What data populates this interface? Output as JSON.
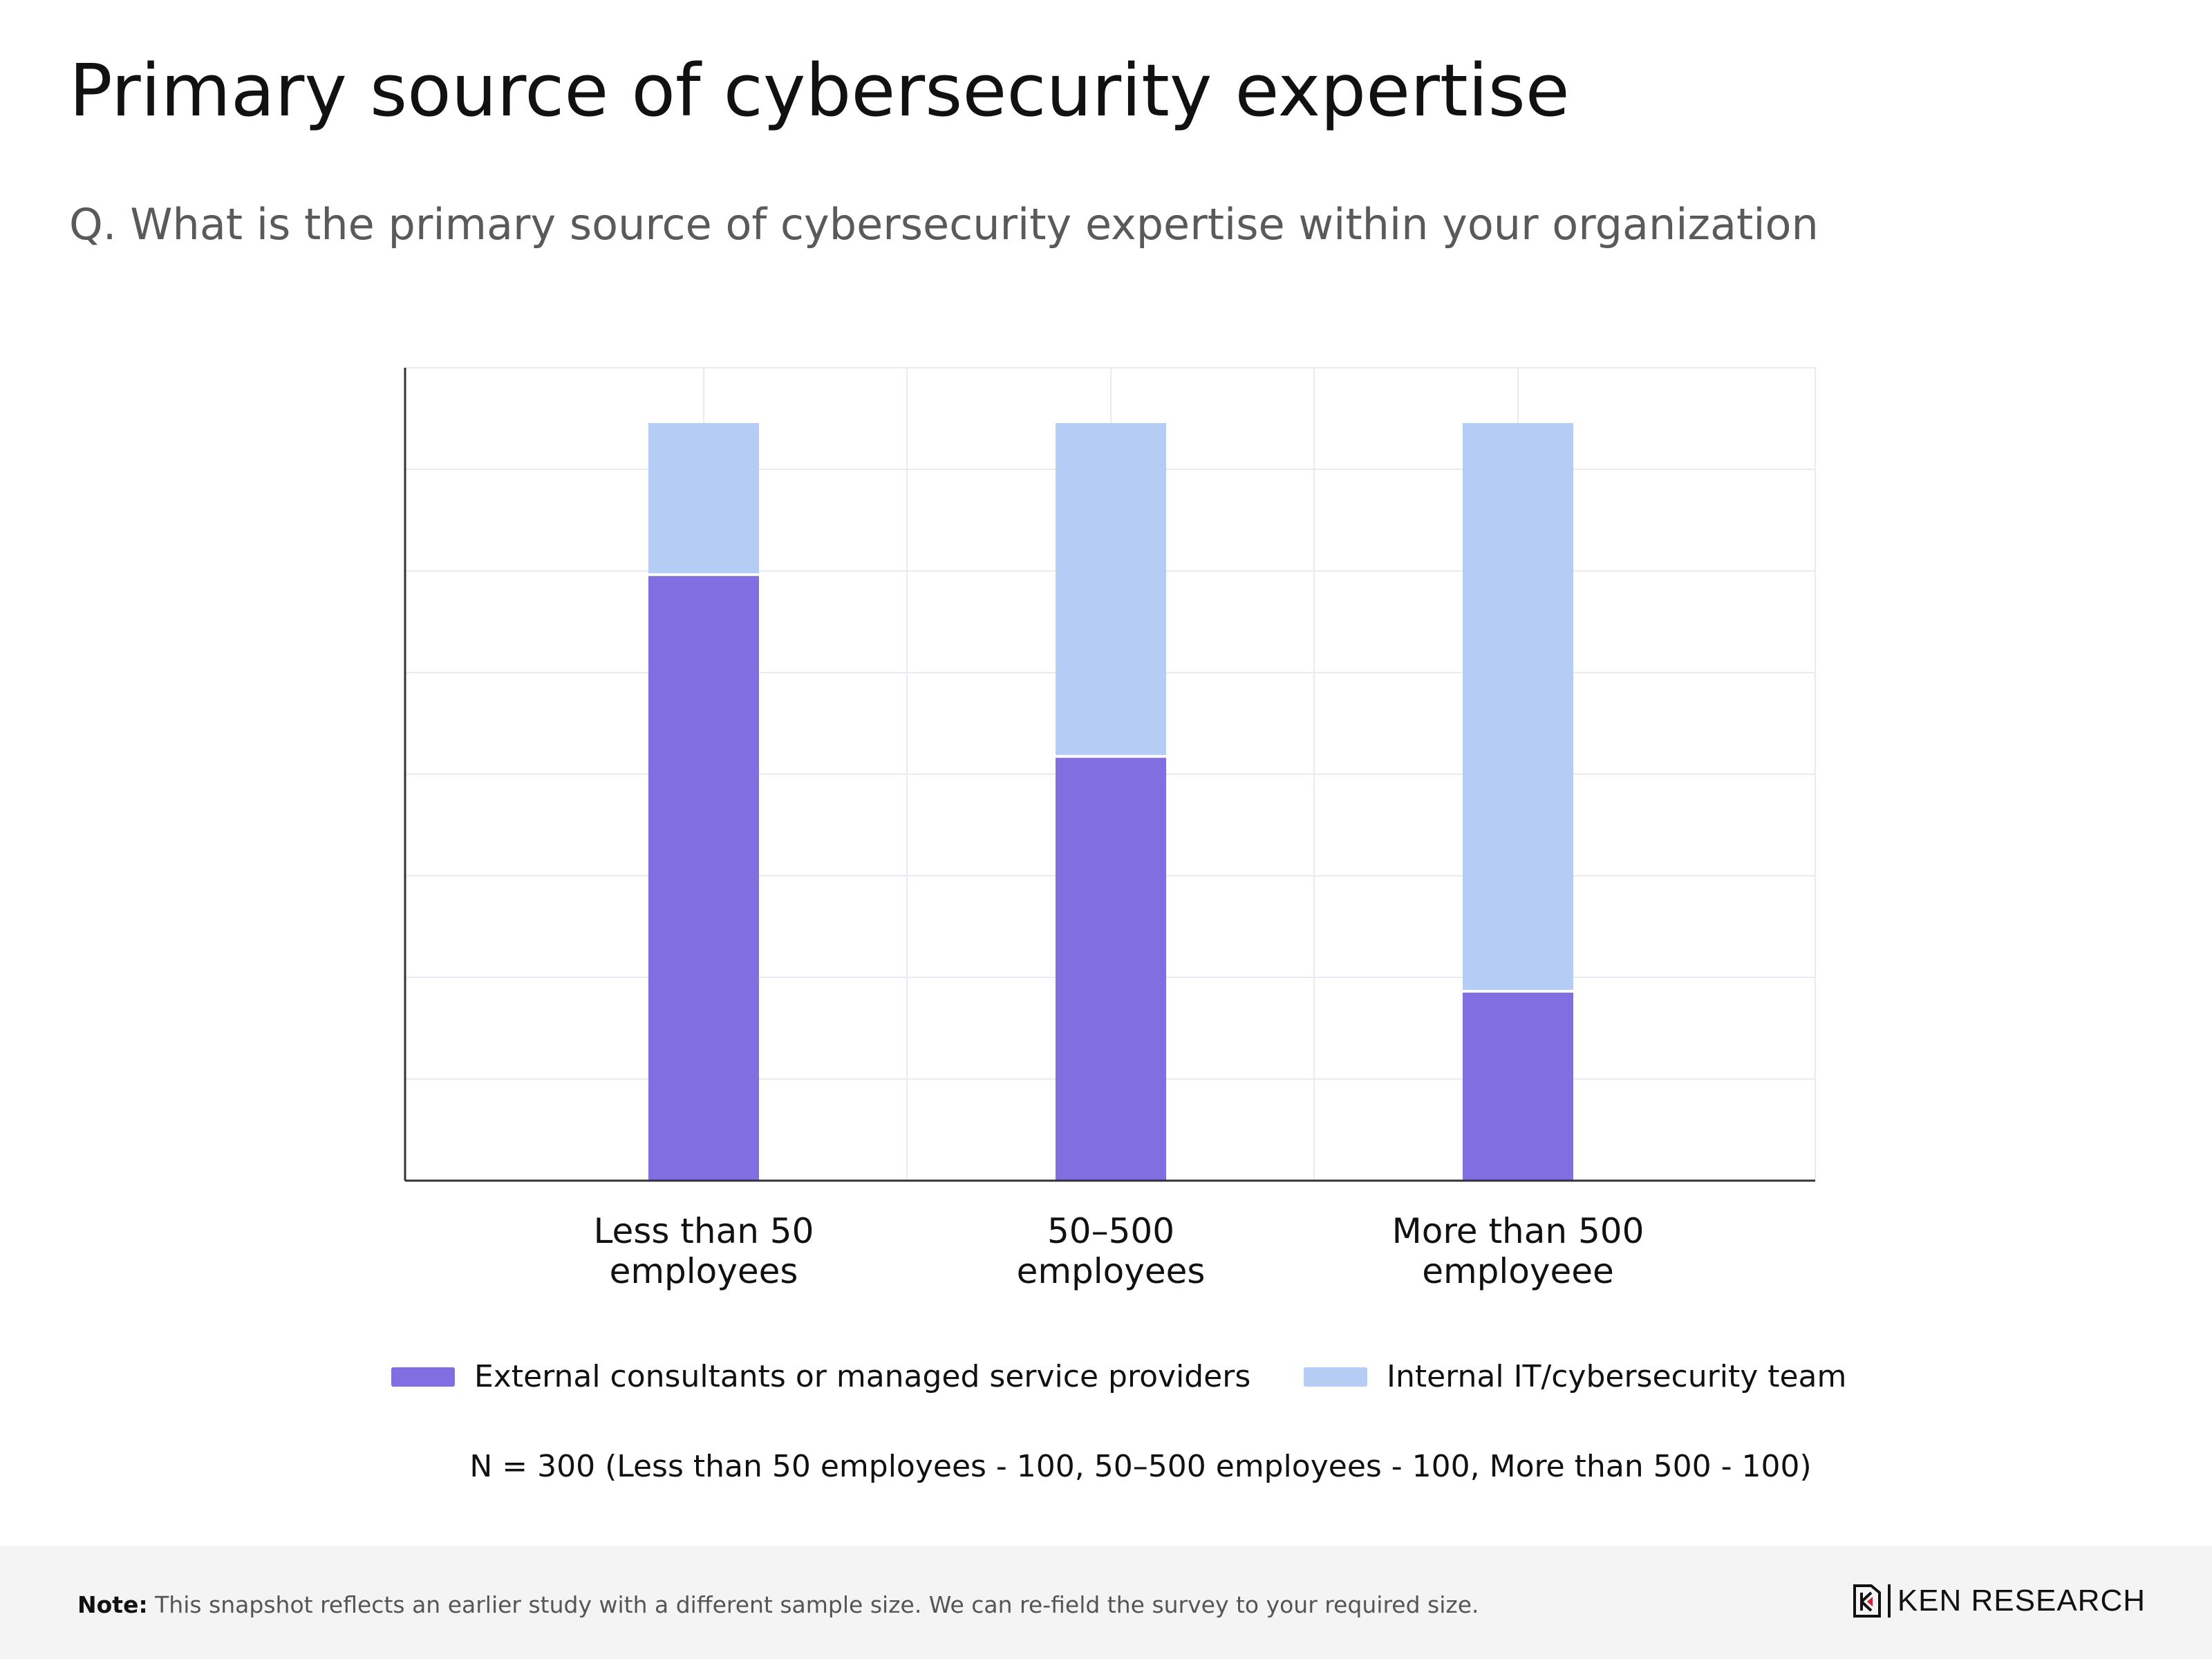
{
  "title": "Primary source of cybersecurity expertise",
  "subtitle": "Q. What is the primary source of cybersecurity expertise within your organization",
  "sample_note": "N = 300 (Less than 50 employees - 100, 50–500 employees - 100, More than 500 - 100)",
  "footer": {
    "note_label": "Note:",
    "note_text": " This snapshot reflects an earlier study with a different sample size. We can re-field the survey to your required size.",
    "logo_text": "KEN RESEARCH"
  },
  "colors": {
    "external": "#816ee0",
    "internal": "#b5cdf5",
    "grid": "#e8ebf2",
    "axis": "#333333"
  },
  "chart_data": {
    "type": "bar",
    "stacked": true,
    "title": "Primary source of cybersecurity expertise",
    "xlabel": "",
    "ylabel": "",
    "ylim": [
      0,
      100
    ],
    "grid": true,
    "legend": "bottom",
    "categories": [
      [
        "Less than 50",
        "employees"
      ],
      [
        "50–500",
        "employees"
      ],
      [
        "More than 500",
        "employeee"
      ]
    ],
    "series": [
      {
        "name": "External consultants or managed service providers",
        "color_key": "external",
        "values": [
          80,
          56,
          25
        ]
      },
      {
        "name": "Internal IT/cybersecurity team",
        "color_key": "internal",
        "values": [
          20,
          44,
          75
        ]
      }
    ]
  }
}
